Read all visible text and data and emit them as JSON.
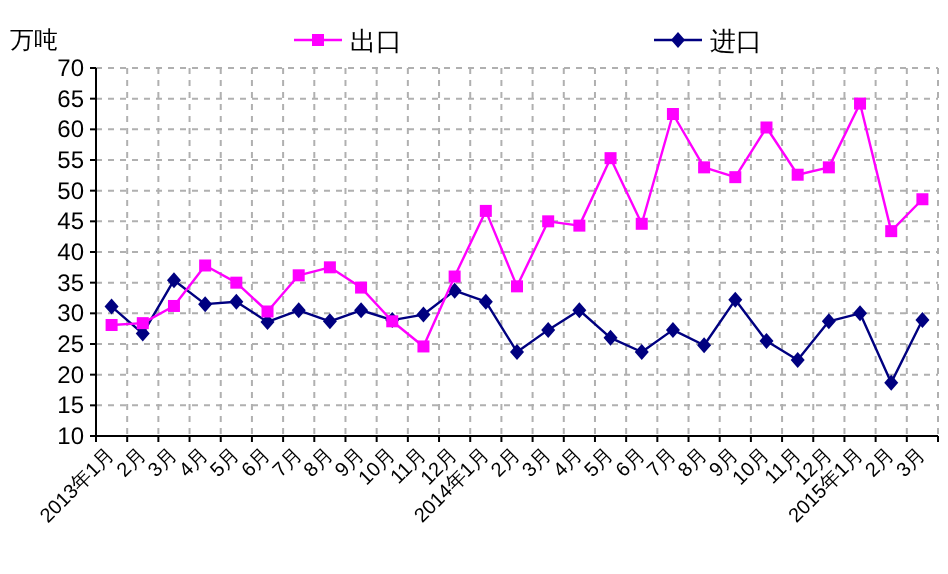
{
  "chart_data": {
    "type": "line",
    "ylabel": "万吨",
    "categories": [
      "2013年1月",
      "2月",
      "3月",
      "4月",
      "5月",
      "6月",
      "7月",
      "8月",
      "9月",
      "10月",
      "11月",
      "12月",
      "2014年1月",
      "2月",
      "3月",
      "4月",
      "5月",
      "6月",
      "7月",
      "8月",
      "9月",
      "10月",
      "11月",
      "12月",
      "2015年1月",
      "2月",
      "3月"
    ],
    "series": [
      {
        "name": "出口",
        "color": "#ff00ff",
        "marker": "square",
        "values": [
          28.1,
          28.4,
          31.2,
          37.8,
          35,
          30.3,
          36.2,
          37.5,
          34.2,
          28.7,
          24.6,
          36,
          46.7,
          34.4,
          45,
          44.3,
          55.3,
          44.6,
          62.5,
          53.8,
          52.2,
          60.3,
          52.6,
          53.8,
          64.2,
          43.4,
          48.6
        ]
      },
      {
        "name": "进口",
        "color": "#000080",
        "marker": "diamond",
        "values": [
          31.1,
          26.7,
          35.4,
          31.5,
          31.9,
          28.6,
          30.5,
          28.7,
          30.5,
          28.9,
          29.8,
          33.7,
          31.9,
          23.7,
          27.3,
          30.5,
          26,
          23.7,
          27.3,
          24.8,
          32.2,
          25.5,
          22.4,
          28.7,
          30,
          18.7,
          28.9
        ]
      }
    ],
    "ylim": [
      10,
      70
    ],
    "yticks": [
      10,
      15,
      20,
      25,
      30,
      35,
      40,
      45,
      50,
      55,
      60,
      65,
      70
    ],
    "grid": true,
    "legend": "top",
    "line_style": "solid"
  }
}
